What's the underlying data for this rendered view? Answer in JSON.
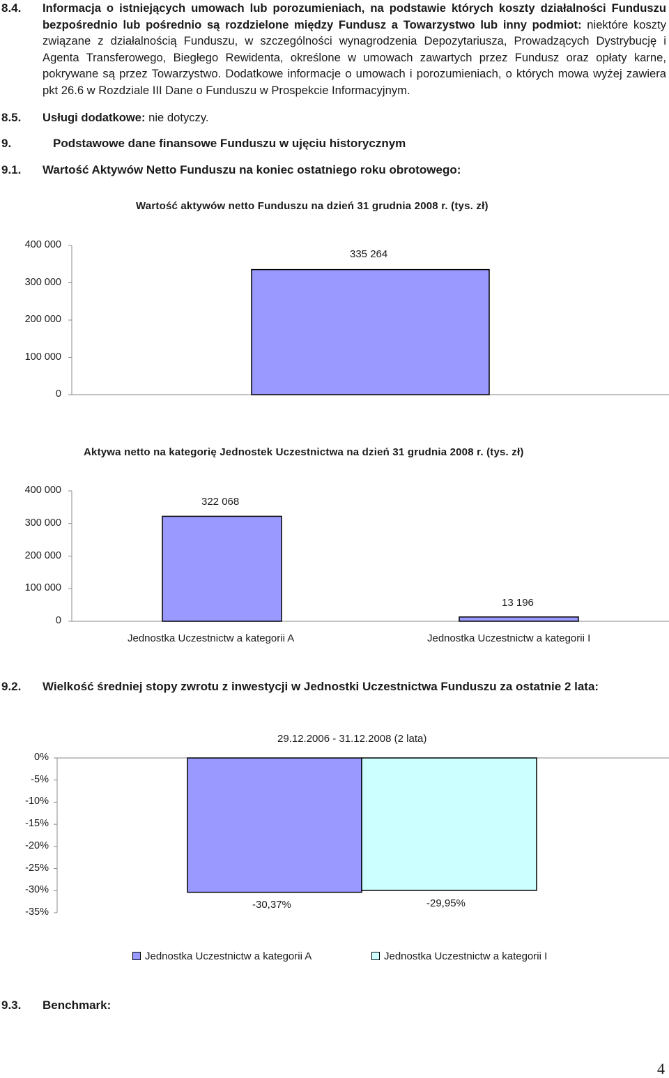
{
  "section_8_4": {
    "number": "8.4.",
    "bold_text": "Informacja o istniejących umowach lub porozumieniach, na podstawie których koszty działalności Funduszu bezpośrednio lub pośrednio są rozdzielone między Fundusz a Towarzystwo lub inny podmiot:",
    "text": " niektóre koszty związane z działalnością Funduszu, w szczególności wynagrodzenia Depozytariusza, Prowadzących Dystrybucję i Agenta Transferowego, Biegłego Rewidenta, określone w umowach zawartych przez Fundusz oraz opłaty karne, pokrywane są przez Towarzystwo. Dodatkowe informacje o umowach i porozumieniach, o których mowa wyżej zawiera pkt 26.6 w Rozdziale III Dane o Funduszu w Prospekcie Informacyjnym."
  },
  "section_8_5": {
    "number": "8.5.",
    "bold_text": "Usługi dodatkowe:",
    "text": " nie dotyczy."
  },
  "section_9": {
    "number": "9.",
    "title": "Podstawowe dane finansowe Funduszu w ujęciu historycznym"
  },
  "section_9_1": {
    "number": "9.1.",
    "title": "Wartość Aktywów Netto Funduszu na koniec ostatniego roku obrotowego:"
  },
  "section_9_2": {
    "number": "9.2.",
    "title": "Wielkość średniej stopy zwrotu z inwestycji w Jednostki Uczestnictwa Funduszu za ostatnie 2 lata:"
  },
  "section_9_3": {
    "number": "9.3.",
    "title": "Benchmark:"
  },
  "page_number": "4",
  "chart_data": [
    {
      "type": "bar",
      "title": "Wartość aktywów netto Funduszu na dzień 31 grudnia 2008 r. (tys. zł)",
      "categories": [
        ""
      ],
      "values": [
        335264
      ],
      "value_labels": [
        "335 264"
      ],
      "ylim": [
        0,
        400000
      ],
      "yticks": [
        0,
        100000,
        200000,
        300000,
        400000
      ],
      "ytick_labels": [
        "0",
        "100 000",
        "200 000",
        "300 000",
        "400 000"
      ],
      "bar_color": "#9999ff",
      "grid": false
    },
    {
      "type": "bar",
      "title": "Aktywa netto na kategorię Jednostek Uczestnictwa na dzień 31 grudnia 2008 r. (tys. zł)",
      "categories": [
        "Jednostka Uczestnictwa kategorii A",
        "Jednostka Uczestnictwa kategorii I"
      ],
      "category_labels": [
        "Jednostka Uczestnictw a kategorii A",
        "Jednostka Uczestnictw a kategorii I"
      ],
      "values": [
        322068,
        13196
      ],
      "value_labels": [
        "322 068",
        "13 196"
      ],
      "ylim": [
        0,
        400000
      ],
      "yticks": [
        0,
        100000,
        200000,
        300000,
        400000
      ],
      "ytick_labels": [
        "0",
        "100 000",
        "200 000",
        "300 000",
        "400 000"
      ],
      "bar_color": "#9999ff",
      "grid": false
    },
    {
      "type": "bar",
      "categories": [
        "29.12.2006 - 31.12.2008 (2 lata)"
      ],
      "series": [
        {
          "name": "Jednostka Uczestnictw a kategorii A",
          "values": [
            -30.37
          ],
          "label": "-30,37%",
          "color": "#9999ff"
        },
        {
          "name": "Jednostka Uczestnictw a kategorii I",
          "values": [
            -29.95
          ],
          "label": "-29,95%",
          "color": "#ccffff"
        }
      ],
      "ylim": [
        -35,
        0
      ],
      "yticks": [
        0,
        -5,
        -10,
        -15,
        -20,
        -25,
        -30,
        -35
      ],
      "ytick_labels": [
        "0%",
        "-5%",
        "-10%",
        "-15%",
        "-20%",
        "-25%",
        "-30%",
        "-35%"
      ],
      "legend": "bottom",
      "grid": false
    }
  ]
}
